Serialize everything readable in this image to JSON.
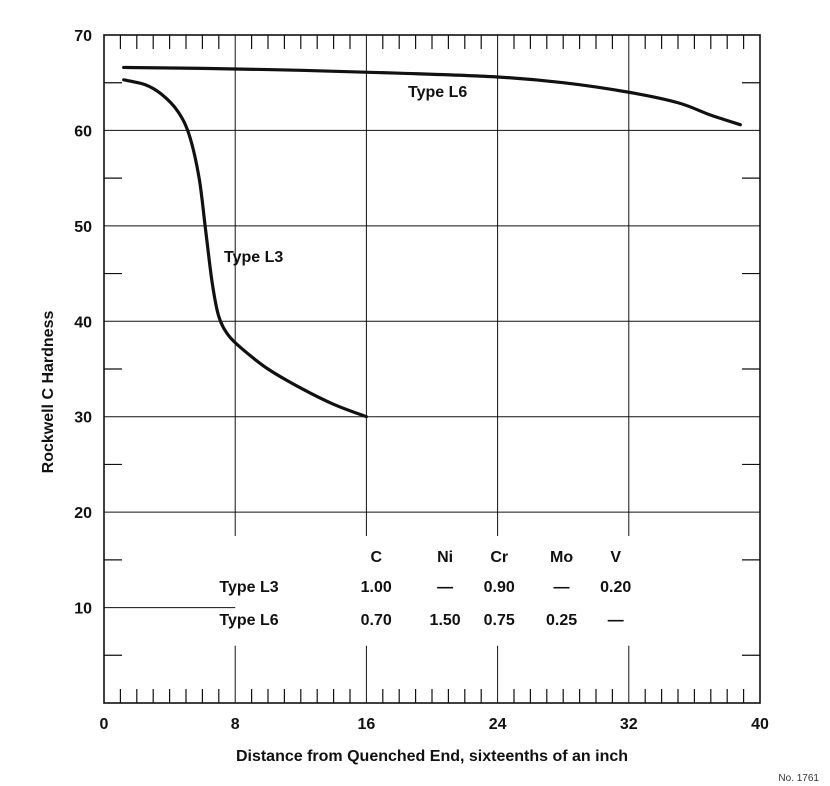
{
  "chart_data": {
    "type": "line",
    "xlabel": "Distance from Quenched End, sixteenths of an inch",
    "ylabel": "Rockwell C Hardness",
    "xlim": [
      0,
      40
    ],
    "ylim": [
      0,
      70
    ],
    "x_ticks": [
      0,
      8,
      16,
      24,
      32,
      40
    ],
    "y_ticks": [
      10,
      20,
      30,
      40,
      50,
      60,
      70
    ],
    "grid": true,
    "series": [
      {
        "name": "Type L6",
        "label": "Type L6",
        "x": [
          1.2,
          6,
          12,
          18,
          24,
          28,
          32,
          35,
          37,
          38.8
        ],
        "y": [
          66.6,
          66.5,
          66.3,
          66.0,
          65.6,
          65.0,
          64.0,
          62.9,
          61.6,
          60.6
        ]
      },
      {
        "name": "Type L3",
        "label": "Type L3",
        "x": [
          1.2,
          2.5,
          3.5,
          4.5,
          5.2,
          5.8,
          6.2,
          6.6,
          7.0,
          7.6,
          8.5,
          10,
          12,
          14,
          16
        ],
        "y": [
          65.3,
          64.8,
          63.8,
          62.0,
          59.5,
          55.0,
          49.5,
          44.0,
          40.5,
          38.5,
          37.0,
          35.0,
          33.0,
          31.3,
          30.0
        ]
      }
    ],
    "table": {
      "headers": [
        "C",
        "Ni",
        "Cr",
        "Mo",
        "V"
      ],
      "rows": [
        {
          "label": "Type L3",
          "values": [
            "1.00",
            "—",
            "0.90",
            "—",
            "0.20"
          ]
        },
        {
          "label": "Type L6",
          "values": [
            "0.70",
            "1.50",
            "0.75",
            "0.25",
            "—"
          ]
        }
      ]
    }
  },
  "figure_note": "No. 1761"
}
